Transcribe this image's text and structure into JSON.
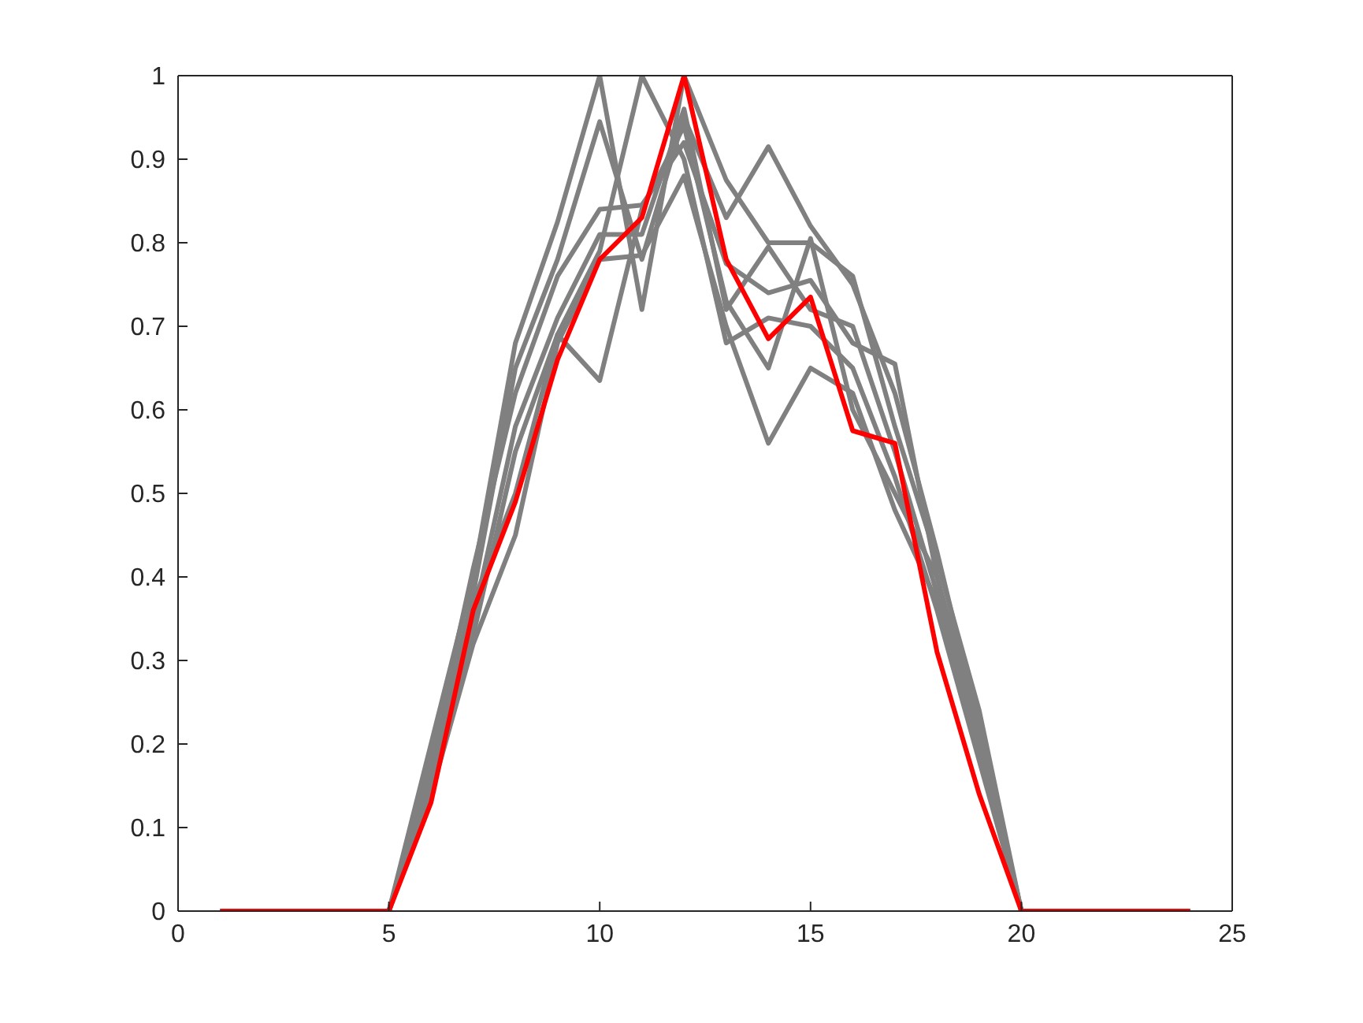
{
  "chart_data": {
    "type": "line",
    "x": [
      1,
      2,
      3,
      4,
      5,
      6,
      7,
      8,
      9,
      10,
      11,
      12,
      13,
      14,
      15,
      16,
      17,
      18,
      19,
      20,
      21,
      22,
      23,
      24
    ],
    "series": [
      {
        "color": "#808080",
        "values": [
          0,
          0,
          0,
          0,
          0,
          0.2,
          0.4,
          0.68,
          0.825,
          1.0,
          0.72,
          1.0,
          0.875,
          0.8,
          0.8,
          0.76,
          0.58,
          0.42,
          0.24,
          0,
          0,
          0,
          0,
          0
        ]
      },
      {
        "color": "#808080",
        "values": [
          0,
          0,
          0,
          0,
          0,
          0.17,
          0.38,
          0.65,
          0.78,
          0.945,
          0.78,
          0.95,
          0.83,
          0.915,
          0.82,
          0.75,
          0.62,
          0.43,
          0.22,
          0,
          0,
          0,
          0,
          0
        ]
      },
      {
        "color": "#808080",
        "values": [
          0,
          0,
          0,
          0,
          0,
          0.18,
          0.41,
          0.62,
          0.76,
          0.84,
          0.845,
          0.92,
          0.775,
          0.74,
          0.755,
          0.68,
          0.655,
          0.4,
          0.2,
          0,
          0,
          0,
          0,
          0
        ]
      },
      {
        "color": "#808080",
        "values": [
          0,
          0,
          0,
          0,
          0,
          0.16,
          0.35,
          0.58,
          0.71,
          0.81,
          0.81,
          0.96,
          0.72,
          0.795,
          0.72,
          0.7,
          0.55,
          0.38,
          0.2,
          0,
          0,
          0,
          0,
          0
        ]
      },
      {
        "color": "#808080",
        "values": [
          0,
          0,
          0,
          0,
          0,
          0.15,
          0.33,
          0.55,
          0.69,
          0.79,
          1.0,
          0.9,
          0.68,
          0.71,
          0.7,
          0.65,
          0.52,
          0.36,
          0.18,
          0,
          0,
          0,
          0,
          0
        ]
      },
      {
        "color": "#808080",
        "values": [
          0,
          0,
          0,
          0,
          0,
          0.17,
          0.37,
          0.5,
          0.69,
          0.635,
          0.84,
          0.94,
          0.73,
          0.65,
          0.805,
          0.6,
          0.5,
          0.4,
          0.22,
          0,
          0,
          0,
          0,
          0
        ]
      },
      {
        "color": "#808080",
        "values": [
          0,
          0,
          0,
          0,
          0,
          0.14,
          0.32,
          0.45,
          0.68,
          0.78,
          0.785,
          0.88,
          0.7,
          0.56,
          0.65,
          0.62,
          0.48,
          0.37,
          0.19,
          0,
          0,
          0,
          0,
          0
        ]
      },
      {
        "color": "#ff0000",
        "values": [
          0,
          0,
          0,
          0,
          0,
          0.13,
          0.36,
          0.49,
          0.66,
          0.78,
          0.83,
          1.0,
          0.78,
          0.685,
          0.735,
          0.575,
          0.56,
          0.31,
          0.14,
          0,
          0,
          0,
          0,
          0
        ]
      }
    ],
    "xlim": [
      0,
      25
    ],
    "xticks": [
      0,
      5,
      10,
      15,
      20,
      25
    ],
    "ylim": [
      0,
      1
    ],
    "yticks": [
      0,
      0.1,
      0.2,
      0.3,
      0.4,
      0.5,
      0.6,
      0.7,
      0.8,
      0.9,
      1
    ],
    "grid": false,
    "legend": false,
    "marker": "none",
    "line_style": "solid"
  }
}
